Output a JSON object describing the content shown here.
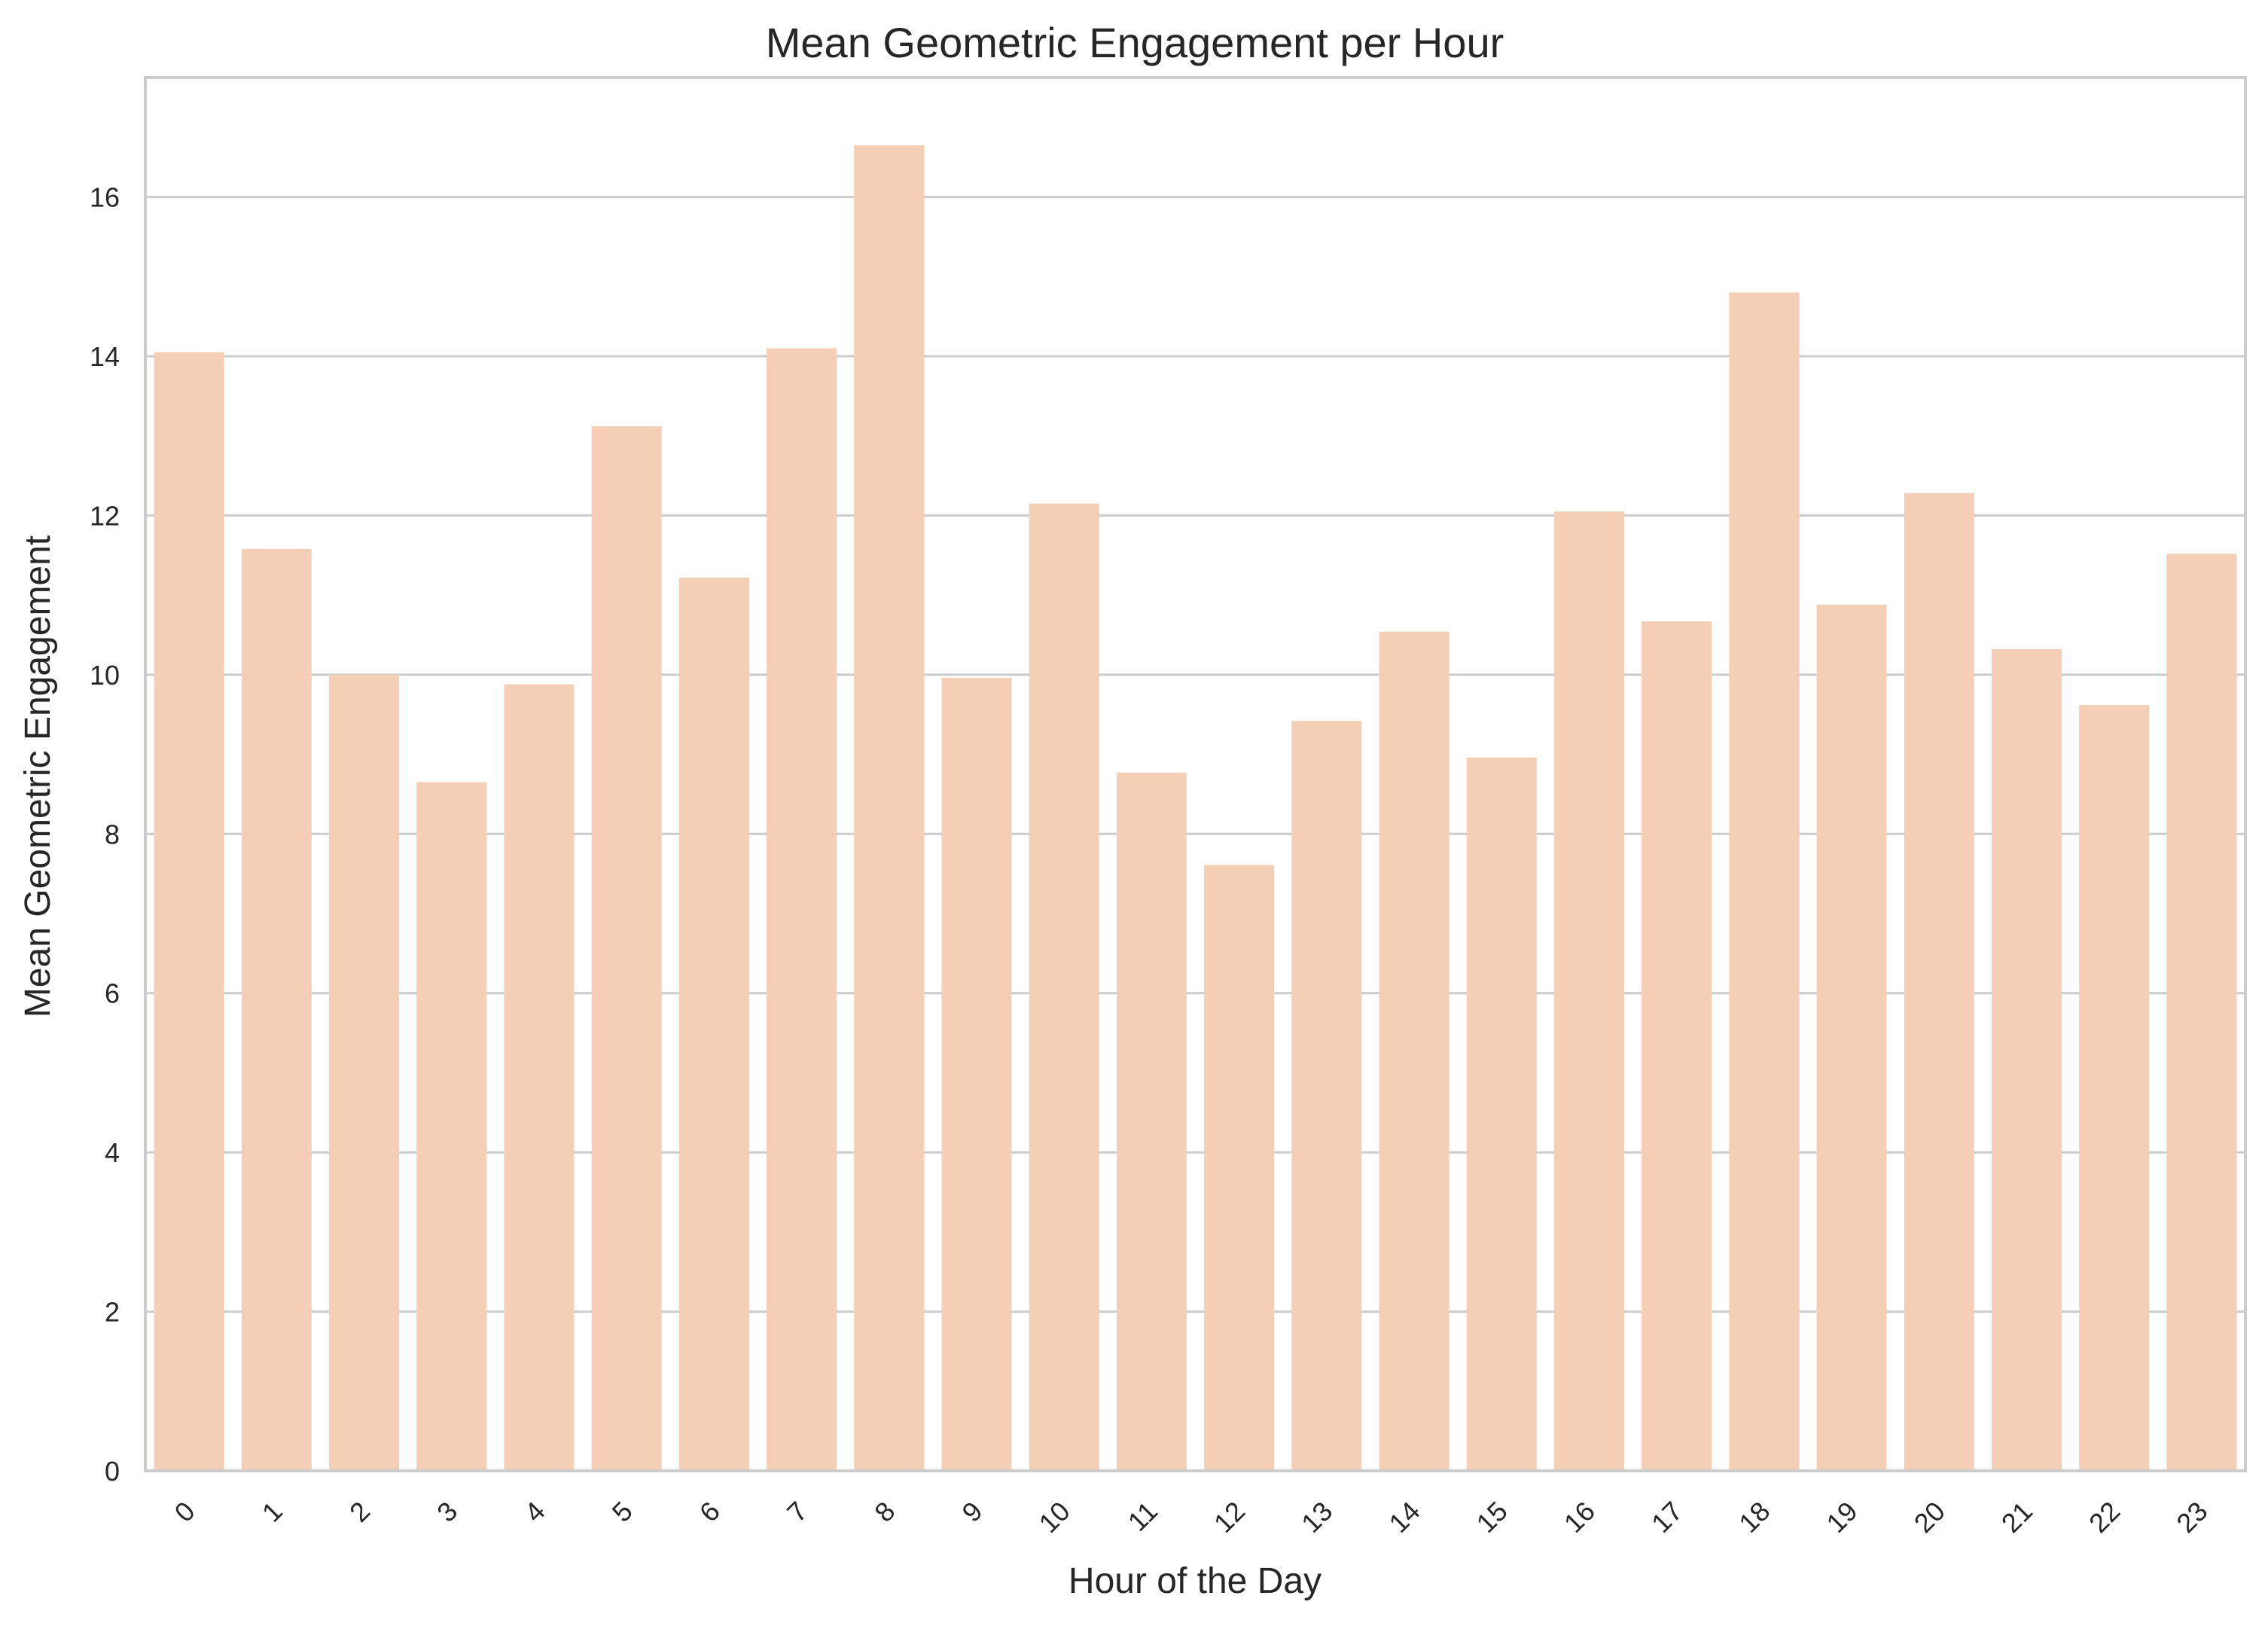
{
  "chart_data": {
    "type": "bar",
    "title": "Mean Geometric Engagement per Hour",
    "xlabel": "Hour of the Day",
    "ylabel": "Mean Geometric Engagement",
    "categories": [
      "0",
      "1",
      "2",
      "3",
      "4",
      "5",
      "6",
      "7",
      "8",
      "9",
      "10",
      "11",
      "12",
      "13",
      "14",
      "15",
      "16",
      "17",
      "18",
      "19",
      "20",
      "21",
      "22",
      "23"
    ],
    "values": [
      14.05,
      11.58,
      10.0,
      8.65,
      9.88,
      13.12,
      11.22,
      14.1,
      16.65,
      9.96,
      12.15,
      8.77,
      7.61,
      9.42,
      10.54,
      8.96,
      12.05,
      10.67,
      14.8,
      10.88,
      12.28,
      10.32,
      9.62,
      11.52
    ],
    "yticks": [
      0,
      2,
      4,
      6,
      8,
      10,
      12,
      14,
      16
    ],
    "ylim": [
      0,
      17.5
    ],
    "grid": "y",
    "legend": "none",
    "bar_color": "#f4cfb5",
    "grid_color": "#cccccc",
    "spine_color": "#cccccc",
    "tick_rotation": 45
  }
}
